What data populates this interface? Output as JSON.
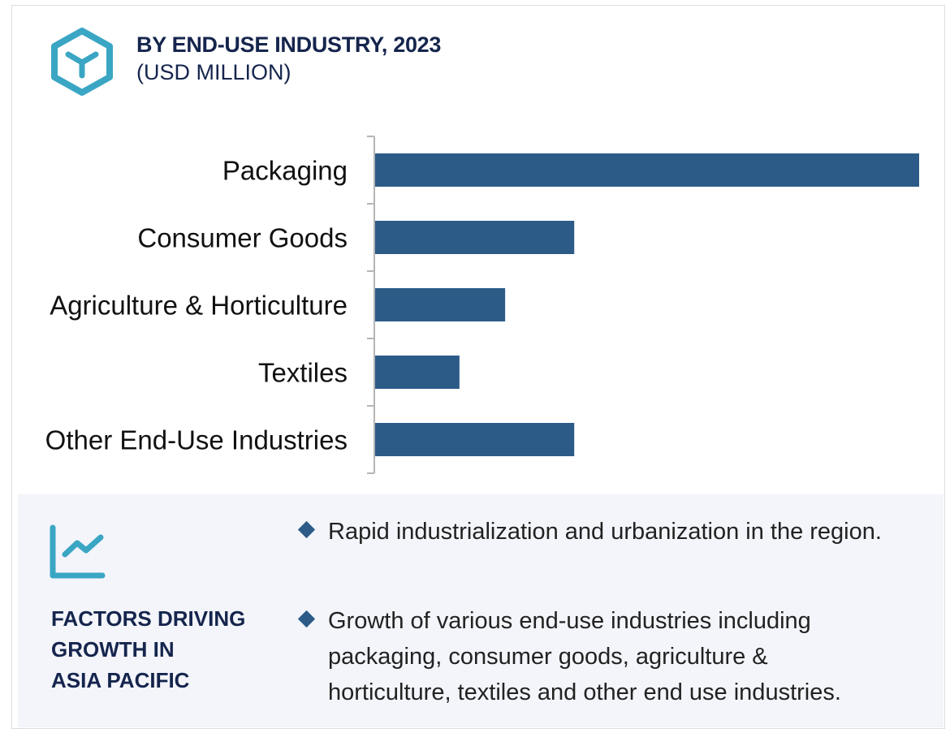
{
  "header": {
    "title": "BY END-USE INDUSTRY, 2023",
    "subtitle": "(USD MILLION)",
    "icon": "hexagon-y-icon"
  },
  "chart_data": {
    "type": "bar",
    "orientation": "horizontal",
    "title": "BY END-USE INDUSTRY, 2023",
    "ylabel": "(USD MILLION)",
    "categories": [
      "Packaging",
      "Consumer Goods",
      "Agriculture & Horticulture",
      "Textiles",
      "Other End-Use Industries"
    ],
    "values": [
      100,
      36.6,
      23.9,
      15.5,
      36.6
    ],
    "value_note": "relative bar lengths; no value axis shown",
    "xlim": [
      0,
      100
    ],
    "color": "#2c5b88",
    "grid": false
  },
  "factors": {
    "icon": "line-chart-icon",
    "heading_lines": [
      "FACTORS DRIVING",
      "GROWTH IN",
      "ASIA PACIFIC"
    ],
    "bullets": [
      "Rapid industrialization and urbanization in the region.",
      "Growth of various end-use industries including packaging, consumer goods, agriculture & horticulture, textiles and other end use industries."
    ]
  },
  "colors": {
    "accent": "#3aa6c4",
    "bar": "#2c5b88",
    "heading": "#15254d",
    "panel": "#f3f5fa"
  }
}
